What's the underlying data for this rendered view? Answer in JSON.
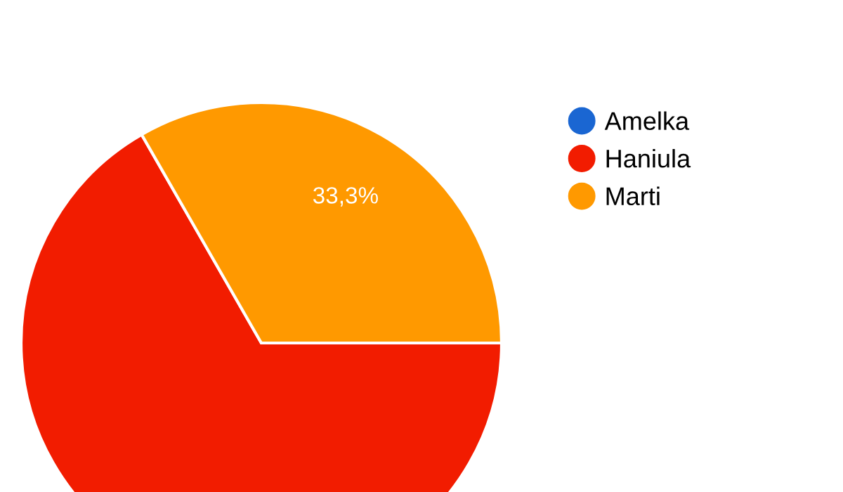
{
  "chart_data": {
    "type": "pie",
    "categories": [
      "Amelka",
      "Haniula",
      "Marti"
    ],
    "values": [
      0,
      66.7,
      33.3
    ],
    "colors": [
      "#1a66d2",
      "#f21c00",
      "#ff9900"
    ],
    "value_labels": [
      null,
      null,
      "33,3%"
    ],
    "legend": "top right"
  }
}
